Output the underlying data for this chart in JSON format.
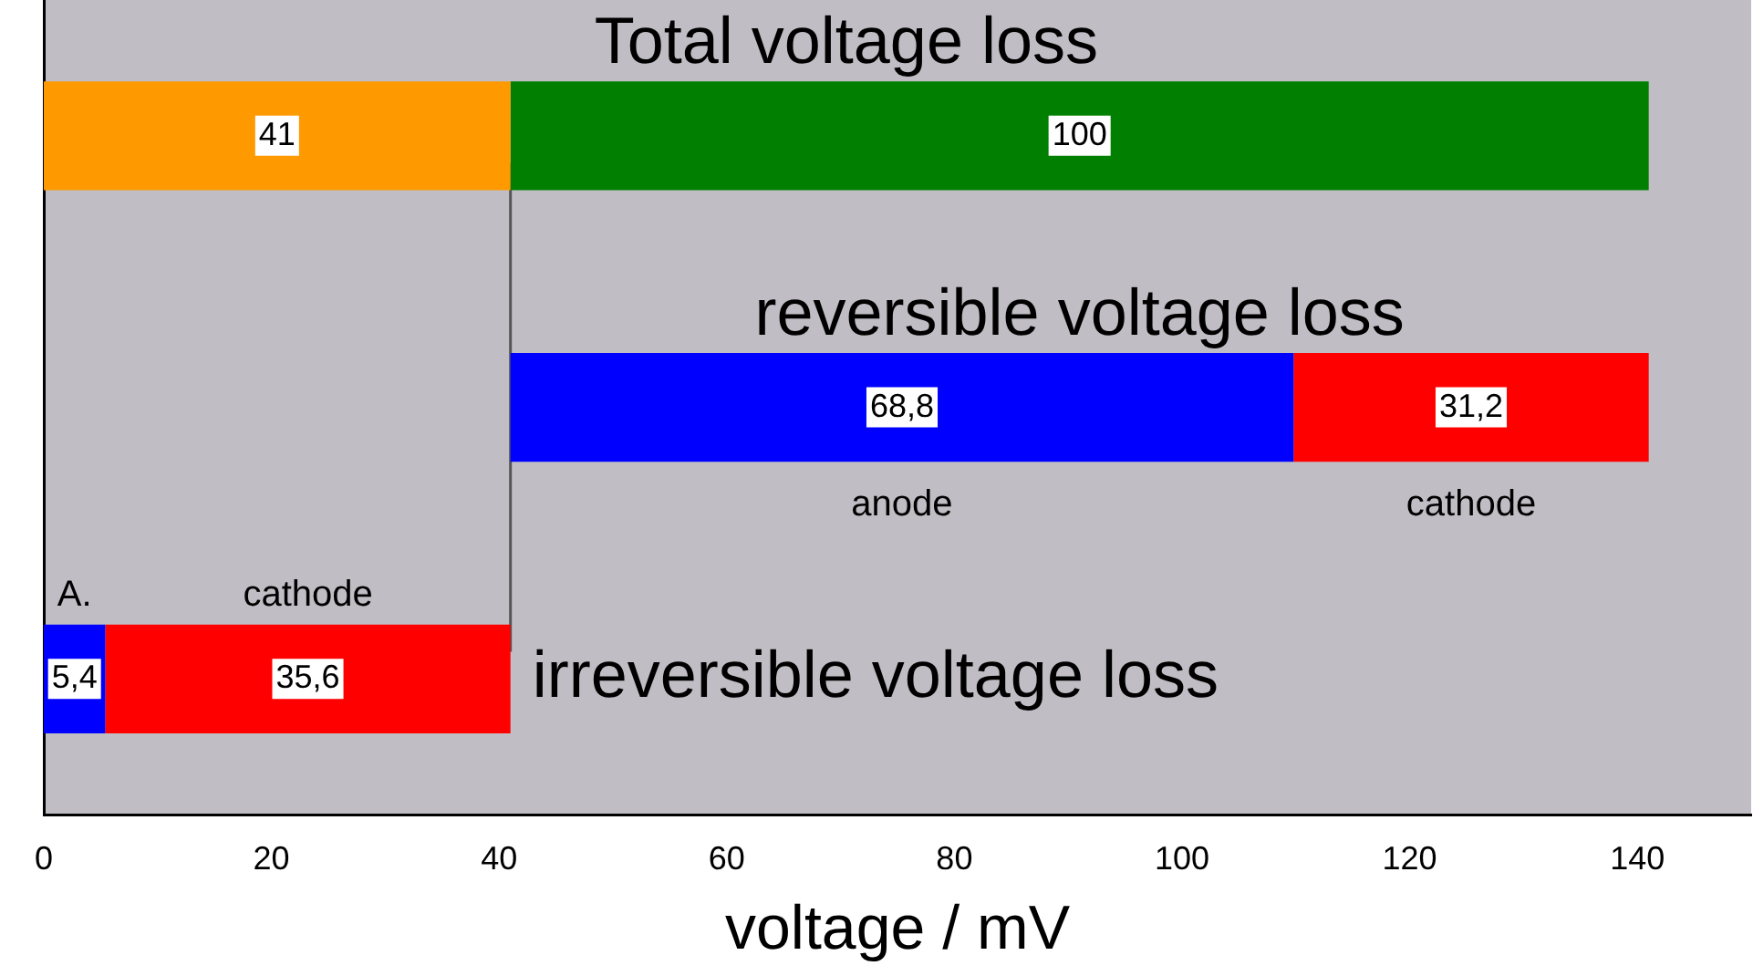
{
  "chart_data": {
    "type": "bar",
    "orientation": "horizontal",
    "xlabel": "voltage / mV",
    "categories": [
      "Total voltage loss",
      "reversible voltage loss",
      "irreversible voltage loss"
    ],
    "series": [
      {
        "values": [
          41,
          68.8,
          5.4
        ],
        "base": [
          0,
          41,
          0
        ],
        "colors": [
          "#ff9900",
          "#0000ff",
          "#0000ff"
        ],
        "value_labels": [
          "41",
          "68,8",
          "5,4"
        ]
      },
      {
        "values": [
          100,
          31.2,
          35.6
        ],
        "base": [
          41,
          109.8,
          5.4
        ],
        "colors": [
          "#007f00",
          "#ff0000",
          "#ff0000"
        ],
        "value_labels": [
          "100",
          "31,2",
          "35,6"
        ]
      }
    ],
    "xlim": [
      0,
      150
    ],
    "xticks": [
      0,
      20,
      40,
      60,
      80,
      100,
      120,
      140
    ],
    "ref_lines": [
      {
        "axis": "x",
        "value": 41,
        "color": "#555555"
      }
    ],
    "annotations": [
      {
        "text": "anode",
        "x": 75.4,
        "y": "reversible voltage loss"
      },
      {
        "text": "cathode",
        "x": 125.4,
        "y": "reversible voltage loss"
      },
      {
        "text": "A.",
        "x": 2.7,
        "y": "irreversible voltage loss"
      },
      {
        "text": "cathode",
        "x": 23.2,
        "y": "irreversible voltage loss"
      }
    ],
    "grid": false,
    "legend": false
  }
}
